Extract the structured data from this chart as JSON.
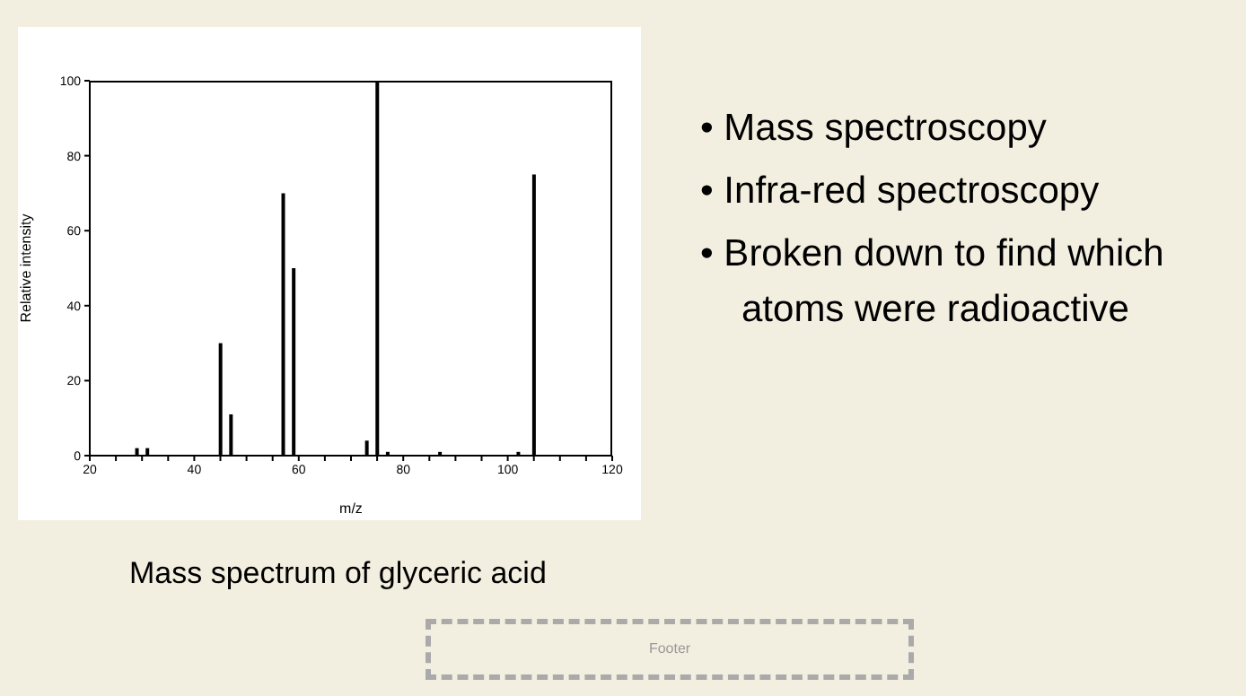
{
  "chart_data": {
    "type": "bar",
    "title": "Mass spectrum of glyceric acid",
    "xlabel": "m/z",
    "ylabel": "Relative intensity",
    "x": [
      29,
      31,
      45,
      47,
      57,
      59,
      73,
      75,
      77,
      87,
      102,
      105
    ],
    "values": [
      2,
      2,
      30,
      11,
      70,
      50,
      4,
      100,
      1,
      1,
      1,
      75
    ],
    "color": "#000000",
    "xlim": [
      20,
      120
    ],
    "xticks": [
      20,
      {
        "value": 25,
        "label": null
      },
      {
        "value": 30,
        "label": null
      },
      {
        "value": 35,
        "label": null
      },
      40,
      {
        "value": 45,
        "label": null
      },
      {
        "value": 50,
        "label": null
      },
      {
        "value": 55,
        "label": null
      },
      60,
      {
        "value": 65,
        "label": null
      },
      {
        "value": 70,
        "label": null
      },
      {
        "value": 75,
        "label": null
      },
      80,
      {
        "value": 85,
        "label": null
      },
      {
        "value": 90,
        "label": null
      },
      {
        "value": 95,
        "label": null
      },
      100,
      {
        "value": 105,
        "label": null
      },
      {
        "value": 110,
        "label": null
      },
      {
        "value": 115,
        "label": null
      },
      120
    ],
    "ylim": [
      0,
      100
    ],
    "yticks": [
      0,
      20,
      40,
      60,
      80,
      100
    ],
    "grid": false,
    "legend": false,
    "annotations": [
      "• Mass spectroscopy",
      "• Infra-red spectroscopy",
      "• Broken down to find which atoms were radioactive",
      "Footer"
    ]
  }
}
